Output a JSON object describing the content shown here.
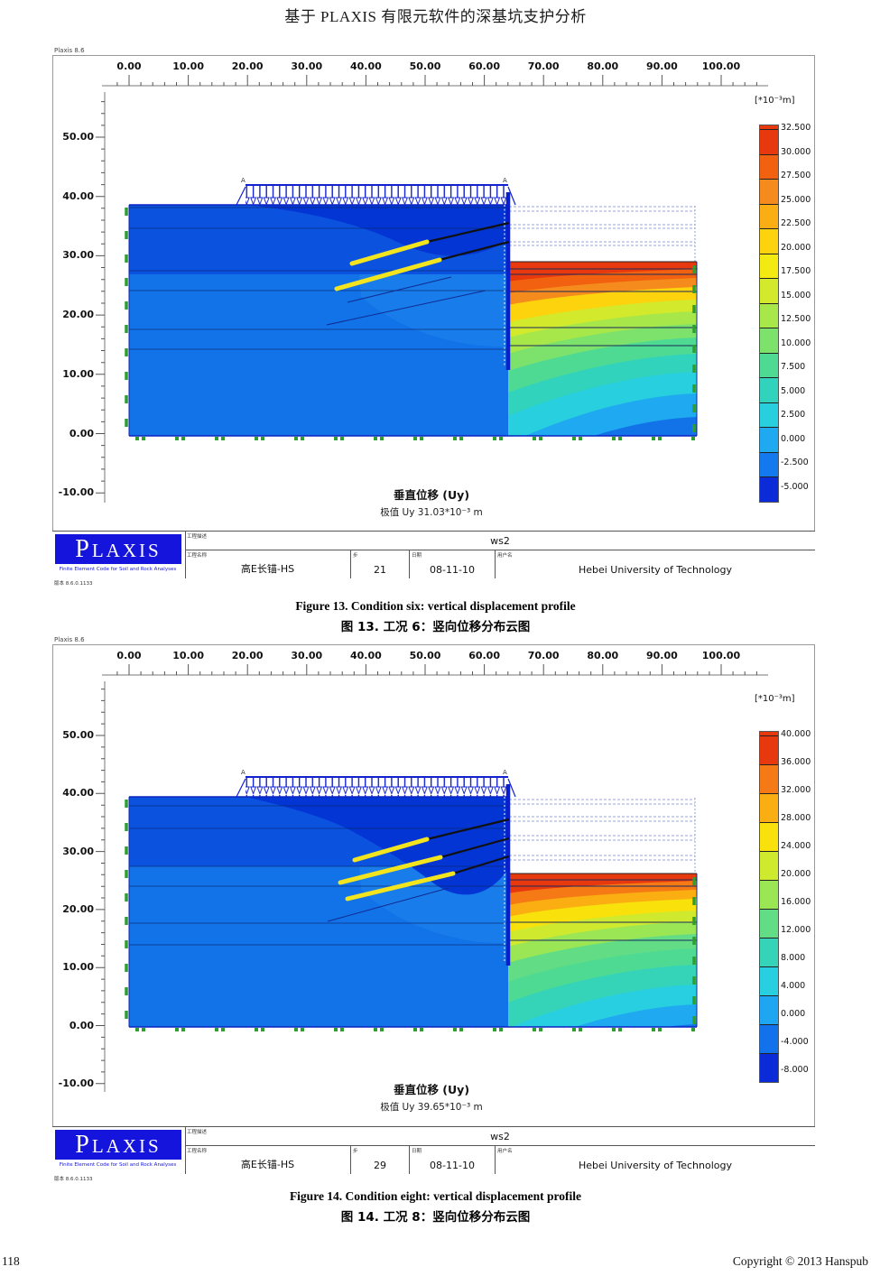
{
  "page": {
    "header_title": "基于 PLAXIS 有限元软件的深基坑支护分析",
    "footer_page_number": "118",
    "footer_copyright": "Copyright © 2013 Hanspub"
  },
  "plaxis_logo": {
    "name": "PLAXIS",
    "tagline": "Finite Element Code for Soil and Rock Analyses",
    "version": "版本 8.6.0.1133"
  },
  "figure13": {
    "window_label": "Plaxis 8.6",
    "marker_a": "A",
    "caption_en": "Figure 13. Condition six: vertical displacement profile",
    "caption_zh": "图 13. 工况 6：竖向位移分布云图",
    "info": {
      "description_label": "工程描述",
      "description_value": "ws2",
      "name_label": "工程名称",
      "name_value": "高E长锚-HS",
      "step_label": "步",
      "step_value": "21",
      "date_label": "日期",
      "date_value": "08-11-10",
      "user_label": "用户名",
      "user_value": "Hebei University of Technology"
    }
  },
  "figure14": {
    "window_label": "Plaxis 8.6",
    "marker_a": "A",
    "caption_en": "Figure 14. Condition eight: vertical displacement profile",
    "caption_zh": "图 14. 工况 8：竖向位移分布云图",
    "info": {
      "description_label": "工程描述",
      "description_value": "ws2",
      "name_label": "工程名称",
      "name_value": "高E长锚-HS",
      "step_label": "步",
      "step_value": "29",
      "date_label": "日期",
      "date_value": "08-11-10",
      "user_label": "用户名",
      "user_value": "Hebei University of Technology"
    }
  },
  "chart_data": [
    {
      "type": "heatmap",
      "figure": "13",
      "title": "垂直位移 (Uy)",
      "extreme": "极值 Uy 31.03*10⁻³ m",
      "unit_label": "[*10⁻³m]",
      "x_ticks": [
        "0.00",
        "10.00",
        "20.00",
        "30.00",
        "40.00",
        "50.00",
        "60.00",
        "70.00",
        "80.00",
        "90.00",
        "100.00"
      ],
      "y_ticks": [
        "50.00",
        "40.00",
        "30.00",
        "20.00",
        "10.00",
        "0.00",
        "-10.00"
      ],
      "legend_values": [
        "32.500",
        "30.000",
        "27.500",
        "25.000",
        "22.500",
        "20.000",
        "17.500",
        "15.000",
        "12.500",
        "10.000",
        "7.500",
        "5.000",
        "2.500",
        "0.000",
        "-2.500",
        "-5.000"
      ],
      "legend_colors": [
        "#E8380D",
        "#F2610F",
        "#F58A1D",
        "#FAAE14",
        "#FCD30C",
        "#F2EA10",
        "#D3EA2C",
        "#A8E749",
        "#7CE26B",
        "#4FDA93",
        "#32D3BC",
        "#27CFDF",
        "#1FA9F1",
        "#1478EE",
        "#0B2BD8"
      ],
      "legend_position": "right",
      "x_range": [
        0,
        100
      ],
      "y_range": [
        -10,
        50
      ]
    },
    {
      "type": "heatmap",
      "figure": "14",
      "title": "垂直位移 (Uy)",
      "extreme": "极值 Uy 39.65*10⁻³ m",
      "unit_label": "[*10⁻³m]",
      "x_ticks": [
        "0.00",
        "10.00",
        "20.00",
        "30.00",
        "40.00",
        "50.00",
        "60.00",
        "70.00",
        "80.00",
        "90.00",
        "100.00"
      ],
      "y_ticks": [
        "50.00",
        "40.00",
        "30.00",
        "20.00",
        "10.00",
        "0.00",
        "-10.00"
      ],
      "legend_values": [
        "40.000",
        "36.000",
        "32.000",
        "28.000",
        "24.000",
        "20.000",
        "16.000",
        "12.000",
        "8.000",
        "4.000",
        "0.000",
        "-4.000",
        "-8.000"
      ],
      "legend_colors": [
        "#E8380D",
        "#F57A16",
        "#FBAE12",
        "#F9E20B",
        "#CFE92F",
        "#9AE655",
        "#62DC85",
        "#35D4B8",
        "#27CFE0",
        "#1FA6F2",
        "#1272EC",
        "#0B2BD8"
      ],
      "legend_position": "right",
      "x_range": [
        0,
        100
      ],
      "y_range": [
        -10,
        50
      ]
    }
  ]
}
